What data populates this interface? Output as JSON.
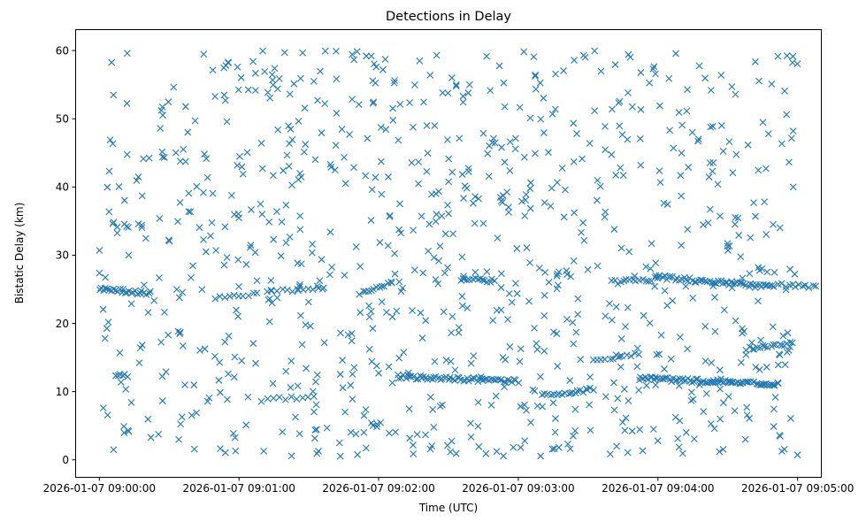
{
  "chart_data": {
    "type": "scatter",
    "title": "Detections in Delay",
    "xlabel": "Time (UTC)",
    "ylabel": "Bistatic Delay (km)",
    "x_unit": "time (UTC, 2026-01-07)",
    "xlim": [
      "2026-01-07 08:59:50",
      "2026-01-07 09:05:10"
    ],
    "ylim": [
      -2.5,
      63
    ],
    "x_ticks": [
      "2026-01-07 09:00:00",
      "2026-01-07 09:01:00",
      "2026-01-07 09:02:00",
      "2026-01-07 09:03:00",
      "2026-01-07 09:04:00",
      "2026-01-07 09:05:00"
    ],
    "y_ticks": [
      0,
      10,
      20,
      30,
      40,
      50,
      60
    ],
    "marker": "x",
    "grid": false,
    "legend": "none",
    "color": "#1f77b4",
    "noise": {
      "description": "uniformly scattered false detections",
      "count": 900,
      "x_range": [
        "2026-01-07 09:00:00",
        "2026-01-07 09:05:00"
      ],
      "y_range": [
        0.5,
        60
      ]
    },
    "tracks": [
      {
        "start": "2026-01-07 09:00:00",
        "end": "2026-01-07 09:00:10",
        "y_start": 25.0,
        "y_end": 24.9,
        "count": 12
      },
      {
        "start": "2026-01-07 09:00:10",
        "end": "2026-01-07 09:00:22",
        "y_start": 24.7,
        "y_end": 24.4,
        "count": 14
      },
      {
        "start": "2026-01-07 09:00:07",
        "end": "2026-01-07 09:00:12",
        "y_start": 12.3,
        "y_end": 12.4,
        "count": 6
      },
      {
        "start": "2026-01-07 09:00:50",
        "end": "2026-01-07 09:01:08",
        "y_start": 23.8,
        "y_end": 24.3,
        "count": 10
      },
      {
        "start": "2026-01-07 09:01:12",
        "end": "2026-01-07 09:01:36",
        "y_start": 24.6,
        "y_end": 25.0,
        "count": 12
      },
      {
        "start": "2026-01-07 09:01:10",
        "end": "2026-01-07 09:01:32",
        "y_start": 8.7,
        "y_end": 9.3,
        "count": 10
      },
      {
        "start": "2026-01-07 09:01:52",
        "end": "2026-01-07 09:02:05",
        "y_start": 24.5,
        "y_end": 26.0,
        "count": 12
      },
      {
        "start": "2026-01-07 09:02:08",
        "end": "2026-01-07 09:03:00",
        "y_start": 12.2,
        "y_end": 11.5,
        "count": 60
      },
      {
        "start": "2026-01-07 09:02:35",
        "end": "2026-01-07 09:02:50",
        "y_start": 26.5,
        "y_end": 26.3,
        "count": 15
      },
      {
        "start": "2026-01-07 09:03:10",
        "end": "2026-01-07 09:03:32",
        "y_start": 9.5,
        "y_end": 10.3,
        "count": 18
      },
      {
        "start": "2026-01-07 09:03:32",
        "end": "2026-01-07 09:03:52",
        "y_start": 14.5,
        "y_end": 15.5,
        "count": 12
      },
      {
        "start": "2026-01-07 09:03:40",
        "end": "2026-01-07 09:04:00",
        "y_start": 26.0,
        "y_end": 26.5,
        "count": 16
      },
      {
        "start": "2026-01-07 09:04:00",
        "end": "2026-01-07 09:04:50",
        "y_start": 26.8,
        "y_end": 25.3,
        "count": 55
      },
      {
        "start": "2026-01-07 09:03:52",
        "end": "2026-01-07 09:04:52",
        "y_start": 12.0,
        "y_end": 11.0,
        "count": 75
      },
      {
        "start": "2026-01-07 09:04:38",
        "end": "2026-01-07 09:04:58",
        "y_start": 16.3,
        "y_end": 17.0,
        "count": 18
      },
      {
        "start": "2026-01-07 09:04:52",
        "end": "2026-01-07 09:05:08",
        "y_start": 25.7,
        "y_end": 25.5,
        "count": 12
      }
    ]
  }
}
